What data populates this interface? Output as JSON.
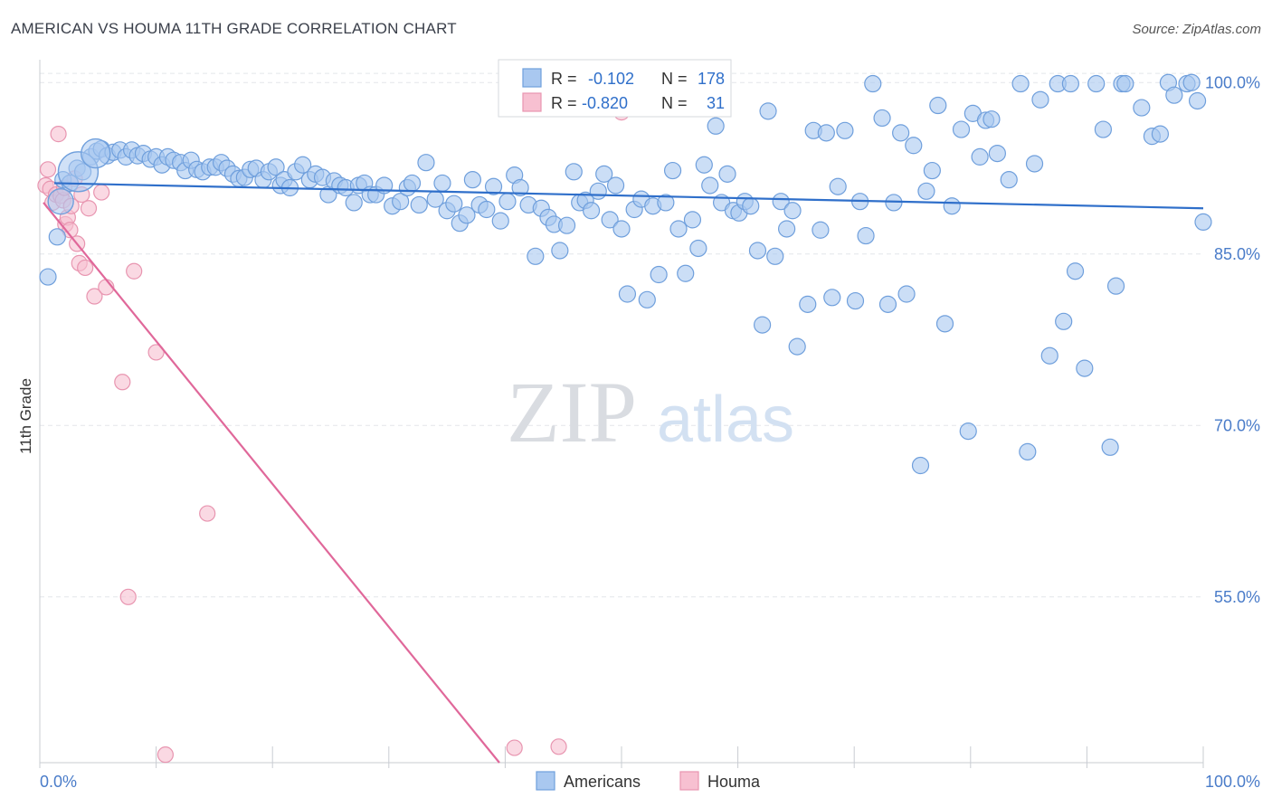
{
  "title": "AMERICAN VS HOUMA 11TH GRADE CORRELATION CHART",
  "source": "Source: ZipAtlas.com",
  "colors": {
    "americans_fill": "#a9c8f0",
    "americans_stroke": "#6f9fdc",
    "americans_line": "#2f6fca",
    "houma_fill": "#f7c0d1",
    "houma_stroke": "#e895b0",
    "houma_line": "#e0689a",
    "tick_text": "#4a7cc9",
    "grid": "#e3e6ea"
  },
  "legend": {
    "r_label": "R =",
    "n_label": "N =",
    "americans": {
      "r": "-0.102",
      "n": "178"
    },
    "houma": {
      "r": "-0.820",
      "n": "31"
    }
  },
  "bottom_legend": {
    "americans": "Americans",
    "houma": "Houma"
  },
  "watermark": {
    "zip": "ZIP",
    "atlas": "atlas"
  },
  "chart_data": {
    "type": "scatter",
    "title": "AMERICAN VS HOUMA 11TH GRADE CORRELATION CHART",
    "xlabel": "",
    "ylabel": "11th Grade",
    "xlim": [
      0,
      100
    ],
    "ylim": [
      40.5,
      102
    ],
    "x_tick_labels": [
      "0.0%",
      "100.0%"
    ],
    "y_ticks": [
      55,
      70,
      85,
      100
    ],
    "y_tick_labels": [
      "55.0%",
      "70.0%",
      "85.0%",
      "100.0%"
    ],
    "grid": true,
    "series": [
      {
        "name": "Americans",
        "trend": {
          "x": [
            0,
            100
          ],
          "y": [
            91.2,
            89.0
          ]
        },
        "points": [
          [
            0.7,
            83.0
          ],
          [
            1.5,
            86.5
          ],
          [
            2.0,
            91.5
          ],
          [
            2.6,
            91.2
          ],
          [
            3.2,
            92.5
          ],
          [
            3.7,
            92.2
          ],
          [
            4.4,
            93.5
          ],
          [
            4.9,
            94.0
          ],
          [
            5.3,
            94.2
          ],
          [
            5.8,
            93.6
          ],
          [
            6.3,
            93.9
          ],
          [
            6.9,
            94.1
          ],
          [
            7.4,
            93.5
          ],
          [
            7.9,
            94.1
          ],
          [
            8.4,
            93.6
          ],
          [
            8.9,
            93.8
          ],
          [
            9.5,
            93.3
          ],
          [
            10.0,
            93.5
          ],
          [
            10.5,
            92.8
          ],
          [
            11.0,
            93.5
          ],
          [
            11.5,
            93.2
          ],
          [
            12.1,
            93.0
          ],
          [
            12.5,
            92.3
          ],
          [
            13.0,
            93.2
          ],
          [
            13.5,
            92.4
          ],
          [
            14.0,
            92.2
          ],
          [
            14.6,
            92.6
          ],
          [
            15.1,
            92.6
          ],
          [
            15.6,
            93.0
          ],
          [
            16.1,
            92.5
          ],
          [
            16.6,
            92.0
          ],
          [
            17.1,
            91.6
          ],
          [
            17.6,
            91.7
          ],
          [
            18.1,
            92.4
          ],
          [
            18.6,
            92.5
          ],
          [
            19.2,
            91.5
          ],
          [
            19.7,
            92.2
          ],
          [
            20.3,
            92.6
          ],
          [
            20.7,
            91.0
          ],
          [
            21.0,
            91.5
          ],
          [
            21.5,
            90.8
          ],
          [
            22.0,
            92.2
          ],
          [
            22.6,
            92.8
          ],
          [
            23.2,
            91.5
          ],
          [
            23.7,
            92.0
          ],
          [
            24.3,
            91.7
          ],
          [
            24.8,
            90.2
          ],
          [
            25.3,
            91.4
          ],
          [
            25.8,
            91.0
          ],
          [
            26.3,
            90.8
          ],
          [
            27.0,
            89.5
          ],
          [
            27.4,
            91.0
          ],
          [
            27.9,
            91.2
          ],
          [
            28.4,
            90.2
          ],
          [
            28.9,
            90.2
          ],
          [
            29.6,
            91.0
          ],
          [
            30.3,
            89.2
          ],
          [
            31.0,
            89.6
          ],
          [
            31.6,
            90.8
          ],
          [
            32.0,
            91.2
          ],
          [
            32.6,
            89.3
          ],
          [
            33.2,
            93.0
          ],
          [
            34.0,
            89.8
          ],
          [
            34.6,
            91.2
          ],
          [
            35.0,
            88.8
          ],
          [
            35.6,
            89.4
          ],
          [
            36.1,
            87.7
          ],
          [
            36.7,
            88.4
          ],
          [
            37.2,
            91.5
          ],
          [
            37.8,
            89.3
          ],
          [
            38.4,
            88.9
          ],
          [
            39.0,
            90.9
          ],
          [
            39.6,
            87.9
          ],
          [
            40.2,
            89.6
          ],
          [
            40.8,
            91.9
          ],
          [
            41.3,
            90.8
          ],
          [
            42.0,
            89.3
          ],
          [
            42.6,
            84.8
          ],
          [
            43.1,
            89.0
          ],
          [
            43.7,
            88.2
          ],
          [
            44.2,
            87.6
          ],
          [
            44.7,
            85.3
          ],
          [
            45.3,
            87.5
          ],
          [
            45.9,
            92.2
          ],
          [
            46.4,
            89.5
          ],
          [
            46.9,
            89.7
          ],
          [
            47.4,
            88.8
          ],
          [
            48.0,
            90.5
          ],
          [
            48.5,
            92.0
          ],
          [
            49.0,
            88.0
          ],
          [
            49.5,
            91.0
          ],
          [
            50.0,
            87.2
          ],
          [
            50.5,
            81.5
          ],
          [
            51.1,
            88.9
          ],
          [
            51.7,
            89.8
          ],
          [
            52.2,
            81.0
          ],
          [
            52.7,
            89.2
          ],
          [
            53.2,
            83.2
          ],
          [
            53.8,
            89.5
          ],
          [
            54.4,
            92.3
          ],
          [
            54.9,
            87.2
          ],
          [
            55.5,
            83.3
          ],
          [
            56.1,
            88.0
          ],
          [
            56.6,
            85.5
          ],
          [
            57.1,
            92.8
          ],
          [
            57.6,
            91.0
          ],
          [
            58.1,
            96.2
          ],
          [
            58.6,
            89.5
          ],
          [
            59.1,
            92.0
          ],
          [
            59.6,
            88.8
          ],
          [
            60.1,
            88.6
          ],
          [
            60.6,
            89.6
          ],
          [
            61.1,
            89.2
          ],
          [
            61.7,
            85.3
          ],
          [
            62.1,
            78.8
          ],
          [
            62.6,
            97.5
          ],
          [
            63.2,
            84.8
          ],
          [
            63.7,
            89.6
          ],
          [
            64.2,
            87.2
          ],
          [
            64.7,
            88.8
          ],
          [
            65.1,
            76.9
          ],
          [
            66.0,
            80.6
          ],
          [
            66.5,
            95.8
          ],
          [
            67.1,
            87.1
          ],
          [
            67.6,
            95.6
          ],
          [
            68.1,
            81.2
          ],
          [
            68.6,
            90.9
          ],
          [
            69.2,
            95.8
          ],
          [
            70.1,
            80.9
          ],
          [
            70.5,
            89.6
          ],
          [
            71.0,
            86.6
          ],
          [
            71.6,
            99.9
          ],
          [
            72.4,
            96.9
          ],
          [
            72.9,
            80.6
          ],
          [
            73.4,
            89.5
          ],
          [
            74.0,
            95.6
          ],
          [
            74.5,
            81.5
          ],
          [
            75.1,
            94.5
          ],
          [
            75.7,
            66.5
          ],
          [
            76.2,
            90.5
          ],
          [
            76.7,
            92.3
          ],
          [
            77.2,
            98.0
          ],
          [
            77.8,
            78.9
          ],
          [
            78.4,
            89.2
          ],
          [
            79.2,
            95.9
          ],
          [
            79.8,
            69.5
          ],
          [
            80.2,
            97.3
          ],
          [
            80.8,
            93.5
          ],
          [
            81.3,
            96.7
          ],
          [
            81.8,
            96.8
          ],
          [
            82.3,
            93.8
          ],
          [
            83.3,
            91.5
          ],
          [
            84.3,
            99.9
          ],
          [
            84.9,
            67.7
          ],
          [
            85.5,
            92.9
          ],
          [
            86.0,
            98.5
          ],
          [
            86.8,
            76.1
          ],
          [
            87.5,
            99.9
          ],
          [
            88.0,
            79.1
          ],
          [
            88.6,
            99.9
          ],
          [
            89.0,
            83.5
          ],
          [
            89.8,
            75.0
          ],
          [
            90.8,
            99.9
          ],
          [
            91.4,
            95.9
          ],
          [
            92.0,
            68.1
          ],
          [
            92.5,
            82.2
          ],
          [
            93.0,
            99.9
          ],
          [
            93.3,
            99.9
          ],
          [
            94.7,
            97.8
          ],
          [
            95.6,
            95.3
          ],
          [
            96.3,
            95.5
          ],
          [
            97.0,
            100.0
          ],
          [
            97.5,
            98.9
          ],
          [
            98.6,
            99.9
          ],
          [
            99.0,
            100.0
          ],
          [
            99.5,
            98.4
          ],
          [
            100.0,
            87.8
          ]
        ],
        "large_points": [
          [
            1.8,
            89.6,
            14
          ],
          [
            3.3,
            92.2,
            22
          ],
          [
            4.8,
            93.8,
            16
          ]
        ]
      },
      {
        "name": "Houma",
        "trend": {
          "x": [
            0,
            39.5
          ],
          "y": [
            89.5,
            40.5
          ]
        },
        "points": [
          [
            0.5,
            91.0
          ],
          [
            0.7,
            92.4
          ],
          [
            0.9,
            90.7
          ],
          [
            1.1,
            89.5
          ],
          [
            1.4,
            90.2
          ],
          [
            1.6,
            95.5
          ],
          [
            1.8,
            90.1
          ],
          [
            2.0,
            89.7
          ],
          [
            2.1,
            90.8
          ],
          [
            2.2,
            87.6
          ],
          [
            2.4,
            88.2
          ],
          [
            2.6,
            87.1
          ],
          [
            2.7,
            89.2
          ],
          [
            3.0,
            91.6
          ],
          [
            3.2,
            85.9
          ],
          [
            3.4,
            84.2
          ],
          [
            3.6,
            90.2
          ],
          [
            3.9,
            83.8
          ],
          [
            4.2,
            89.0
          ],
          [
            4.7,
            81.3
          ],
          [
            5.3,
            90.4
          ],
          [
            5.7,
            82.1
          ],
          [
            7.1,
            73.8
          ],
          [
            7.6,
            55.0
          ],
          [
            8.1,
            83.5
          ],
          [
            10.0,
            76.4
          ],
          [
            10.8,
            41.2
          ],
          [
            14.4,
            62.3
          ],
          [
            40.8,
            41.8
          ],
          [
            44.6,
            41.9
          ],
          [
            50.0,
            97.4
          ]
        ]
      }
    ]
  }
}
